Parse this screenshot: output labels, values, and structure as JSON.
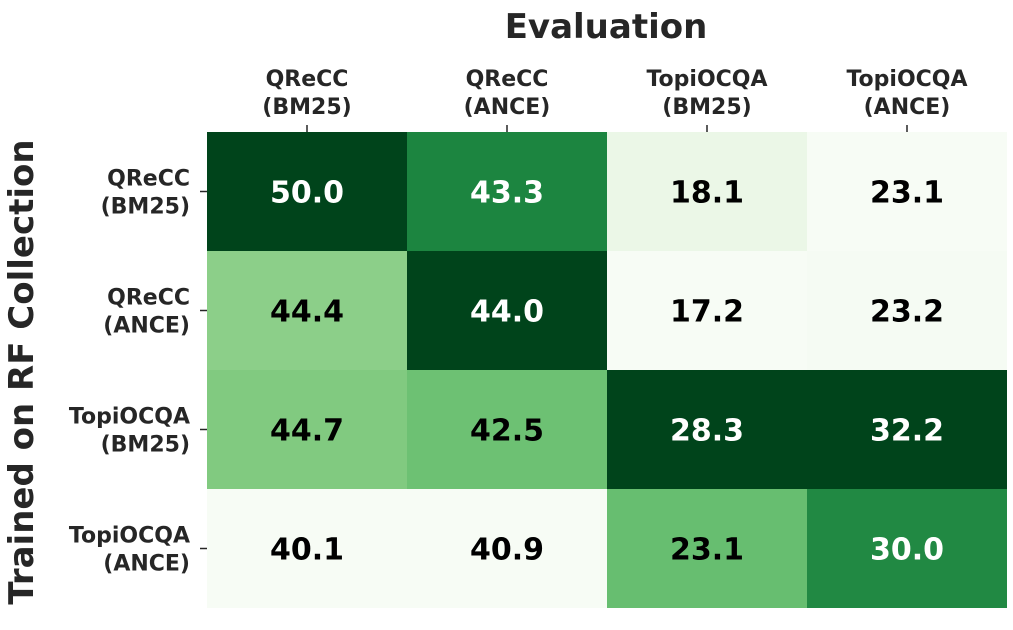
{
  "chart_data": {
    "type": "heatmap",
    "title": "Evaluation",
    "xlabel": "Evaluation",
    "ylabel": "Trained on RF Collection",
    "columns": [
      [
        "QReCC",
        "(BM25)"
      ],
      [
        "QReCC",
        "(ANCE)"
      ],
      [
        "TopiOCQA",
        "(BM25)"
      ],
      [
        "TopiOCQA",
        "(ANCE)"
      ]
    ],
    "rows": [
      [
        "QReCC",
        "(BM25)"
      ],
      [
        "QReCC",
        "(ANCE)"
      ],
      [
        "TopiOCQA",
        "(BM25)"
      ],
      [
        "TopiOCQA",
        "(ANCE)"
      ]
    ],
    "values": [
      [
        50.0,
        43.3,
        18.1,
        23.1
      ],
      [
        44.4,
        44.0,
        17.2,
        23.2
      ],
      [
        44.7,
        42.5,
        28.3,
        32.2
      ],
      [
        40.1,
        40.9,
        23.1,
        30.0
      ]
    ],
    "labels": [
      [
        "50.0",
        "43.3",
        "18.1",
        "23.1"
      ],
      [
        "44.4",
        "44.0",
        "17.2",
        "23.2"
      ],
      [
        "44.7",
        "42.5",
        "28.3",
        "32.2"
      ],
      [
        "40.1",
        "40.9",
        "23.1",
        "30.0"
      ]
    ],
    "colormap": "Greens",
    "normalization": "per-column",
    "colors": {
      "low": "#f7fcf5",
      "high": "#00441b",
      "text_dark": "#000000",
      "text_light": "#ffffff",
      "axis": "#262626"
    }
  }
}
